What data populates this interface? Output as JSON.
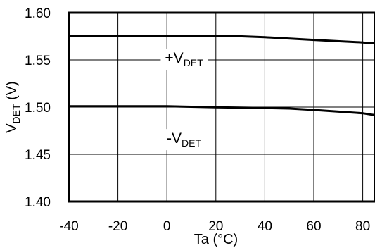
{
  "chart_data": {
    "type": "line",
    "title": "",
    "xlabel": "Ta (°C)",
    "ylabel_main": "V",
    "ylabel_sub": "DET",
    "ylabel_suffix": " (V)",
    "xlim": [
      -40,
      85
    ],
    "ylim": [
      1.4,
      1.6
    ],
    "x_ticks": [
      -40,
      -20,
      0,
      20,
      40,
      60,
      80
    ],
    "x_tick_labels": [
      "-40",
      "-20",
      "0",
      "20",
      "40",
      "60",
      "80"
    ],
    "y_ticks": [
      1.4,
      1.45,
      1.5,
      1.55,
      1.6
    ],
    "y_tick_labels": [
      "1.40",
      "1.45",
      "1.50",
      "1.55",
      "1.60"
    ],
    "grid": true,
    "legend": "none",
    "line_color": "#000000",
    "series": [
      {
        "label_main": "+V",
        "label_sub": "DET",
        "label_x": 7,
        "label_y": 1.553,
        "x": [
          -40,
          -20,
          0,
          20,
          25,
          40,
          60,
          80,
          85
        ],
        "y": [
          1.5755,
          1.5755,
          1.5755,
          1.5755,
          1.5755,
          1.574,
          1.5712,
          1.5685,
          1.5675
        ]
      },
      {
        "label_main": "-V",
        "label_sub": "DET",
        "label_x": 7,
        "label_y": 1.4678,
        "x": [
          -40,
          -20,
          0,
          20,
          40,
          50,
          60,
          80,
          85
        ],
        "y": [
          1.501,
          1.501,
          1.501,
          1.4998,
          1.499,
          1.4985,
          1.497,
          1.4935,
          1.4915
        ]
      }
    ]
  }
}
